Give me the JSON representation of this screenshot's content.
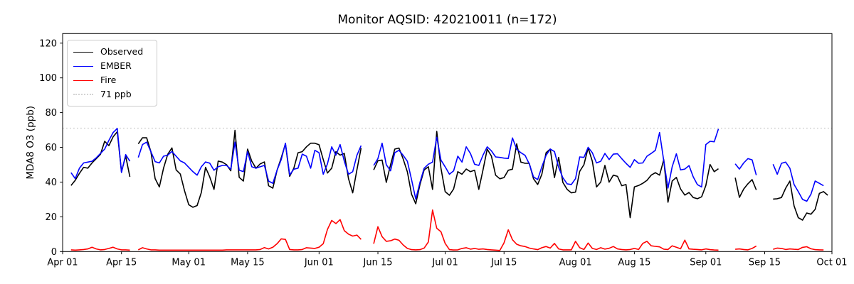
{
  "figure": {
    "title": "Monitor AQSID: 420210011 (n=172)",
    "ylabel": "MDA8 O3 (ppb)",
    "background_color": "#ffffff",
    "frame_color": "#000000"
  },
  "chart_data": {
    "type": "line",
    "title": "Monitor AQSID: 420210011 (n=172)",
    "xlabel": "",
    "ylabel": "MDA8 O3 (ppb)",
    "x_start_date": "Apr 01",
    "x_end_date": "Oct 01",
    "x_span_days": 183,
    "ylim": [
      0,
      125.5
    ],
    "grid": false,
    "legend_position": "upper-left",
    "x_ticks": [
      {
        "label": "Apr 01",
        "day": 0
      },
      {
        "label": "Apr 15",
        "day": 14
      },
      {
        "label": "May 01",
        "day": 30
      },
      {
        "label": "May 15",
        "day": 44
      },
      {
        "label": "Jun 01",
        "day": 61
      },
      {
        "label": "Jun 15",
        "day": 75
      },
      {
        "label": "Jul 01",
        "day": 91
      },
      {
        "label": "Jul 15",
        "day": 105
      },
      {
        "label": "Aug 01",
        "day": 122
      },
      {
        "label": "Aug 15",
        "day": 136
      },
      {
        "label": "Sep 01",
        "day": 153
      },
      {
        "label": "Sep 15",
        "day": 167
      },
      {
        "label": "Oct 01",
        "day": 183
      }
    ],
    "y_ticks": [
      0,
      20,
      40,
      60,
      80,
      100,
      120
    ],
    "threshold": {
      "label": "71 ppb",
      "value": 71,
      "color": "#d3d3d3",
      "style": "dotted"
    },
    "series": [
      {
        "name": "Observed",
        "color": "#000000",
        "values": [
          null,
          null,
          38,
          41,
          45,
          48.5,
          48,
          51,
          53.5,
          56,
          63.5,
          61,
          66,
          69,
          46,
          55,
          43,
          null,
          62,
          65.5,
          65.5,
          57.5,
          42,
          37.2,
          48,
          56,
          59.7,
          47,
          44.6,
          35,
          27,
          25.5,
          26.5,
          34,
          48.5,
          43,
          35.8,
          52.1,
          51.5,
          50,
          46.5,
          69.8,
          42.7,
          40.6,
          59,
          52,
          48,
          50.5,
          51.6,
          37.9,
          36.5,
          46.8,
          54,
          62,
          43.3,
          48,
          56.9,
          57.5,
          60.3,
          62.4,
          62.4,
          61.5,
          53,
          45.2,
          48,
          57.5,
          55.5,
          56.5,
          42,
          33.8,
          47,
          59.6,
          null,
          null,
          47,
          52.3,
          52.7,
          39.8,
          50,
          59,
          59.6,
          53.3,
          45.9,
          33,
          27.5,
          38.6,
          47,
          48.8,
          35.8,
          69.2,
          48,
          34.5,
          32.4,
          36,
          46,
          44.5,
          47.5,
          46,
          46.8,
          35.8,
          47,
          59,
          55,
          44,
          41.9,
          42.6,
          46.8,
          47.4,
          62,
          51.5,
          50.8,
          50.8,
          42,
          38.6,
          44.5,
          56.9,
          59,
          42.6,
          54.2,
          39.8,
          35.8,
          33.8,
          34.2,
          46.2,
          50,
          59.7,
          52,
          37.2,
          40,
          49.6,
          40,
          44,
          43.3,
          37.9,
          38.6,
          19.5,
          37.2,
          38,
          39.3,
          41,
          44,
          45.4,
          44,
          52.9,
          28.4,
          40.6,
          42.7,
          36,
          32.5,
          34,
          31.1,
          30.4,
          31.5,
          38,
          50.1,
          46,
          47.7,
          null,
          null,
          null,
          42.5,
          31.2,
          36,
          39,
          41.4,
          35.5,
          null,
          null,
          null,
          30.2,
          30.4,
          31.1,
          36.5,
          40.6,
          26.3,
          19.5,
          18.1,
          22.2,
          21.5,
          24.3,
          33.5,
          34.5,
          32.4
        ]
      },
      {
        "name": "EMBER",
        "color": "#0000ff",
        "values": [
          null,
          null,
          45.4,
          42,
          48,
          51,
          51.5,
          52,
          54,
          56.5,
          59,
          64,
          68.5,
          70.9,
          45.5,
          55.8,
          52,
          null,
          54.2,
          61.6,
          63,
          57.5,
          51.8,
          51,
          54.9,
          55.5,
          57.6,
          54.9,
          52.2,
          51,
          48.5,
          46,
          44,
          48.8,
          51.6,
          50.9,
          46.8,
          48.8,
          49.6,
          49.6,
          47.4,
          63,
          46.8,
          46,
          57.5,
          48.8,
          48,
          48.8,
          49.6,
          40.6,
          39.3,
          46.8,
          53,
          62.4,
          44.1,
          47.4,
          48,
          56.1,
          54.9,
          48,
          58.3,
          56.9,
          44.5,
          50.5,
          60.3,
          55.5,
          61.6,
          52,
          44.5,
          46,
          55.4,
          61,
          null,
          null,
          49.6,
          53.5,
          62.4,
          50,
          46.5,
          56.9,
          58.3,
          55.4,
          52,
          41.4,
          30.2,
          39.8,
          48,
          50.3,
          51.5,
          65.8,
          52.7,
          48.8,
          44.5,
          46.5,
          54.9,
          51.5,
          60.3,
          56.5,
          50.3,
          49.6,
          55.5,
          60.3,
          58,
          54.5,
          54.2,
          53.8,
          53.6,
          65.4,
          59,
          56.9,
          55.4,
          50.5,
          43,
          41.4,
          48.8,
          55.4,
          59,
          57.6,
          48.5,
          42.5,
          39,
          38.6,
          42,
          54.5,
          54.2,
          60,
          56.9,
          51,
          52,
          56.5,
          53,
          56.1,
          56.3,
          53.5,
          50.8,
          48.5,
          52.9,
          50.8,
          51,
          54.9,
          56.5,
          58.3,
          68.5,
          52.2,
          36.5,
          48.8,
          56.3,
          47,
          47.5,
          49.5,
          43,
          38.5,
          37.2,
          61.6,
          63.5,
          63.2,
          70.6,
          null,
          null,
          null,
          50.5,
          47.5,
          51,
          53.5,
          52.8,
          44,
          null,
          null,
          null,
          50.3,
          44.5,
          50.8,
          51.5,
          48,
          38.6,
          34.5,
          30,
          29,
          33,
          40.6,
          39.3,
          37.9,
          null
        ]
      },
      {
        "name": "Fire",
        "color": "#ff0000",
        "values": [
          null,
          null,
          1,
          0.8,
          1,
          1.2,
          1.5,
          2.5,
          1.5,
          1,
          1.2,
          1.8,
          2.5,
          1.5,
          1,
          1,
          0.8,
          null,
          1,
          2.2,
          1.5,
          1,
          1,
          0.8,
          0.8,
          0.8,
          0.8,
          0.8,
          0.8,
          0.8,
          0.8,
          0.8,
          0.8,
          0.8,
          0.8,
          0.8,
          0.8,
          0.8,
          0.8,
          1,
          1,
          1,
          1,
          1,
          1,
          1,
          1,
          1.2,
          2.3,
          1.5,
          2.5,
          4.5,
          7.3,
          7,
          1.2,
          1,
          1,
          1.2,
          2.2,
          2,
          1.8,
          2.5,
          4.5,
          12.7,
          17.9,
          16.1,
          18.4,
          12,
          10,
          8.9,
          9.5,
          7,
          null,
          null,
          4.5,
          14.3,
          8.6,
          5.9,
          6.2,
          7.2,
          6.5,
          3.8,
          1.8,
          1.1,
          1,
          1.1,
          2,
          5.5,
          23.9,
          13.4,
          11.4,
          4.7,
          1.1,
          0.9,
          1,
          1.8,
          2.2,
          1.4,
          1.8,
          1.3,
          1.5,
          1.2,
          1,
          0.8,
          0.6,
          5,
          12.5,
          6.8,
          4.2,
          3.3,
          2.9,
          2,
          1.5,
          1.1,
          2.2,
          2.9,
          2,
          4.7,
          1.5,
          1,
          1,
          1,
          5.9,
          2.2,
          1.2,
          4.9,
          1.8,
          1.2,
          2.2,
          1.4,
          1.9,
          2.9,
          1.5,
          1.2,
          1,
          1.2,
          1.8,
          1.2,
          4.7,
          5.9,
          3.3,
          3,
          2.7,
          1.4,
          1.2,
          3.3,
          2.5,
          1.6,
          6.6,
          1.5,
          1.3,
          1.2,
          1,
          1.5,
          1.1,
          0.9,
          0.8,
          null,
          null,
          null,
          1.3,
          1.5,
          1.2,
          1,
          1.8,
          3.2,
          null,
          null,
          null,
          1.3,
          2,
          1.8,
          1.2,
          1.5,
          1.3,
          1.2,
          2.4,
          2.8,
          1.6,
          1.1,
          1,
          0.9,
          null
        ]
      }
    ]
  },
  "legend": {
    "observed": "Observed",
    "ember": "EMBER",
    "fire": "Fire",
    "threshold": "71 ppb"
  }
}
